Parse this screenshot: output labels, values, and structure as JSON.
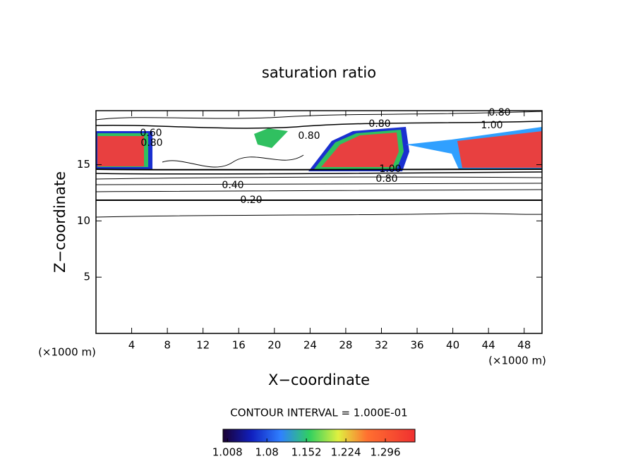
{
  "chart_data": {
    "type": "contour",
    "title": "saturation ratio",
    "xlabel": "X−coordinate",
    "ylabel": "Z−coordinate",
    "y_unit": "(×1000 m)",
    "x_unit": "(×1000 m)",
    "xlim": [
      0,
      50
    ],
    "xticks": [
      4,
      8,
      12,
      16,
      20,
      24,
      28,
      32,
      36,
      40,
      44,
      48
    ],
    "ylim": [
      0,
      19.8
    ],
    "yticks": [
      5,
      10,
      15
    ],
    "contour_labels": [
      {
        "value": 0.8,
        "label": "0.80"
      },
      {
        "value": 1.0,
        "label": "1.00"
      },
      {
        "value": 0.8,
        "label": "0.80"
      },
      {
        "value": 0.6,
        "label": "0.60"
      },
      {
        "value": 0.8,
        "label": "0.80"
      },
      {
        "value": 0.8,
        "label": "0.80"
      },
      {
        "value": 1.0,
        "label": "1.00"
      },
      {
        "value": 0.8,
        "label": "0.80"
      },
      {
        "value": 0.4,
        "label": "0.40"
      },
      {
        "value": 0.2,
        "label": "0.20"
      }
    ],
    "contour_interval": "CONTOUR INTERVAL = 1.000E-01",
    "clim": [
      1.0,
      1.35
    ],
    "cticks": [
      1.008,
      1.08,
      1.152,
      1.224,
      1.296
    ]
  }
}
